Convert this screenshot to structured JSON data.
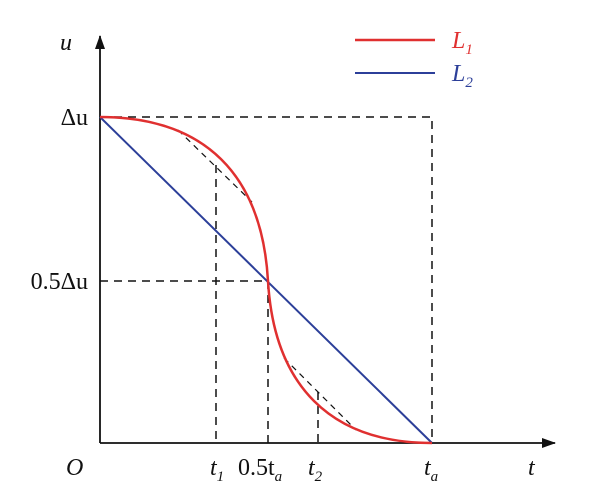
{
  "axes": {
    "y_label": "u",
    "x_label": "t",
    "origin": "O"
  },
  "y_marks": [
    "Δu",
    "0.5Δu"
  ],
  "x_marks": [
    {
      "main": "t",
      "sub": "1"
    },
    {
      "main": "0.5t",
      "sub": "a"
    },
    {
      "main": "t",
      "sub": "2"
    },
    {
      "main": "t",
      "sub": "a"
    }
  ],
  "legend": [
    {
      "main": "L",
      "sub": "1"
    },
    {
      "main": "L",
      "sub": "2"
    }
  ]
}
